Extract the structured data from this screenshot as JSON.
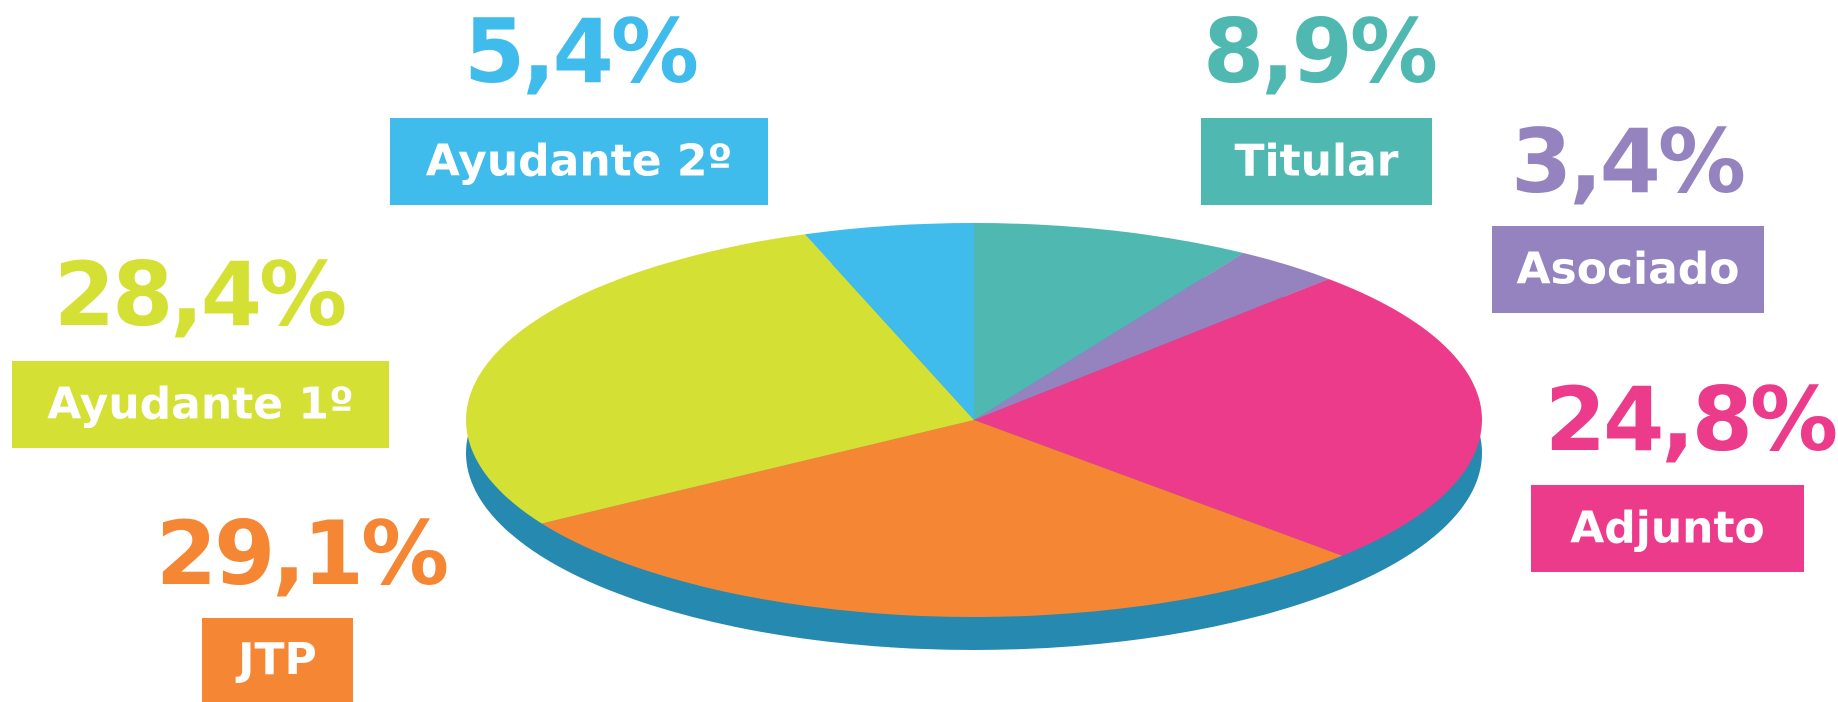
{
  "chart_data": {
    "type": "pie",
    "categories": [
      "Titular",
      "Asociado",
      "Adjunto",
      "JTP",
      "Ayudante 1º",
      "Ayudante 2º"
    ],
    "values": [
      8.9,
      3.4,
      24.8,
      29.1,
      28.4,
      5.4
    ],
    "value_labels": [
      "8,9%",
      "3,4%",
      "24,8%",
      "29,1%",
      "28,4%",
      "5,4%"
    ],
    "colors": [
      "#4fb8b0",
      "#9483bf",
      "#ec3b8a",
      "#f58634",
      "#d4e034",
      "#3fbbec"
    ]
  }
}
